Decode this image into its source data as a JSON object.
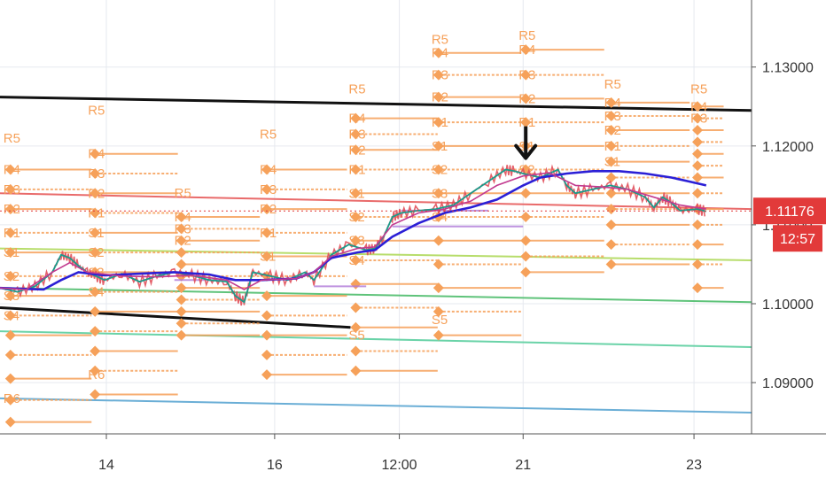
{
  "chart_data": {
    "type": "line",
    "title": "",
    "xlabel": "",
    "ylabel": "",
    "ylim": [
      1.0835,
      1.1385
    ],
    "x_ticks": [
      {
        "label": "14",
        "t": 12.2
      },
      {
        "label": "16",
        "t": 31.5
      },
      {
        "label": "12:00",
        "t": 45.8
      },
      {
        "label": "21",
        "t": 60.0
      },
      {
        "label": "23",
        "t": 79.6
      }
    ],
    "y_ticks": [
      "1.13000",
      "1.12000",
      "1.11000",
      "1.10000",
      "1.09000"
    ],
    "y_tick_values": [
      1.13,
      1.12,
      1.11,
      1.1,
      1.09
    ],
    "current_price": {
      "label": "1.11176",
      "value": 1.11176,
      "color": "#e23a3a"
    },
    "countdown": {
      "label": "12:57",
      "color": "#e23a3a"
    },
    "grid": true,
    "price_series": {
      "name": "",
      "color": "#1b9a8a",
      "points": [
        [
          0,
          1.102
        ],
        [
          2,
          1.1015
        ],
        [
          4,
          1.1022
        ],
        [
          6,
          1.104
        ],
        [
          7,
          1.1062
        ],
        [
          8,
          1.1058
        ],
        [
          9,
          1.1048
        ],
        [
          10,
          1.104
        ],
        [
          11,
          1.1035
        ],
        [
          12,
          1.103
        ],
        [
          14,
          1.1038
        ],
        [
          16,
          1.1028
        ],
        [
          18,
          1.1035
        ],
        [
          20,
          1.104
        ],
        [
          22,
          1.1036
        ],
        [
          24,
          1.103
        ],
        [
          26,
          1.1028
        ],
        [
          27,
          1.101
        ],
        [
          28,
          1.1002
        ],
        [
          29,
          1.104
        ],
        [
          31,
          1.1035
        ],
        [
          33,
          1.103
        ],
        [
          35,
          1.104
        ],
        [
          36,
          1.103
        ],
        [
          38,
          1.1062
        ],
        [
          40,
          1.1075
        ],
        [
          42,
          1.1068
        ],
        [
          43,
          1.107
        ],
        [
          44,
          1.1085
        ],
        [
          45,
          1.111
        ],
        [
          46,
          1.1115
        ],
        [
          48,
          1.1118
        ],
        [
          50,
          1.112
        ],
        [
          52,
          1.1125
        ],
        [
          54,
          1.114
        ],
        [
          56,
          1.1155
        ],
        [
          58,
          1.117
        ],
        [
          59,
          1.1168
        ],
        [
          60,
          1.1165
        ],
        [
          62,
          1.116
        ],
        [
          64,
          1.117
        ],
        [
          65,
          1.115
        ],
        [
          66,
          1.114
        ],
        [
          68,
          1.1145
        ],
        [
          70,
          1.115
        ],
        [
          72,
          1.1145
        ],
        [
          74,
          1.1135
        ],
        [
          75,
          1.1122
        ],
        [
          76,
          1.1135
        ],
        [
          77,
          1.1128
        ],
        [
          78,
          1.1118
        ],
        [
          80,
          1.112
        ],
        [
          81,
          1.1117
        ]
      ]
    },
    "moving_averages": [
      {
        "name": "",
        "color": "#2b1fd6",
        "points": [
          [
            0,
            1.102
          ],
          [
            5,
            1.1018
          ],
          [
            7,
            1.103
          ],
          [
            9,
            1.104
          ],
          [
            12,
            1.1036
          ],
          [
            16,
            1.1038
          ],
          [
            20,
            1.104
          ],
          [
            24,
            1.1037
          ],
          [
            27,
            1.103
          ],
          [
            30,
            1.103
          ],
          [
            34,
            1.1032
          ],
          [
            36,
            1.104
          ],
          [
            38,
            1.1058
          ],
          [
            41,
            1.1065
          ],
          [
            43,
            1.1068
          ],
          [
            45,
            1.1085
          ],
          [
            48,
            1.1102
          ],
          [
            51,
            1.1115
          ],
          [
            54,
            1.1122
          ],
          [
            57,
            1.1132
          ],
          [
            60,
            1.115
          ],
          [
            62,
            1.116
          ],
          [
            65,
            1.1165
          ],
          [
            68,
            1.1168
          ],
          [
            71,
            1.1168
          ],
          [
            74,
            1.1165
          ],
          [
            77,
            1.116
          ],
          [
            79,
            1.1155
          ],
          [
            81,
            1.115
          ]
        ]
      },
      {
        "name": "",
        "color": "#c23a8f",
        "points": [
          [
            0,
            1.102
          ],
          [
            3,
            1.1018
          ],
          [
            6,
            1.104
          ],
          [
            8,
            1.1052
          ],
          [
            10,
            1.104
          ],
          [
            14,
            1.1035
          ],
          [
            18,
            1.1034
          ],
          [
            22,
            1.1036
          ],
          [
            26,
            1.103
          ],
          [
            28,
            1.1018
          ],
          [
            30,
            1.103
          ],
          [
            34,
            1.1032
          ],
          [
            36,
            1.104
          ],
          [
            38,
            1.106
          ],
          [
            41,
            1.107
          ],
          [
            43,
            1.1072
          ],
          [
            45,
            1.11
          ],
          [
            48,
            1.1115
          ],
          [
            51,
            1.112
          ],
          [
            54,
            1.113
          ],
          [
            57,
            1.115
          ],
          [
            60,
            1.1162
          ],
          [
            63,
            1.1166
          ],
          [
            66,
            1.115
          ],
          [
            69,
            1.1148
          ],
          [
            72,
            1.1145
          ],
          [
            75,
            1.1135
          ],
          [
            78,
            1.1125
          ],
          [
            81,
            1.112
          ]
        ]
      }
    ],
    "trendlines": [
      {
        "color": "#111111",
        "points": [
          [
            0,
            1.1262
          ],
          [
            86.2,
            1.1245
          ]
        ]
      },
      {
        "color": "#111111",
        "points": [
          [
            0,
            1.0995
          ],
          [
            40.2,
            1.097
          ]
        ]
      },
      {
        "color": "#e96a6a",
        "points": [
          [
            0,
            1.114
          ],
          [
            86.2,
            1.112
          ]
        ]
      },
      {
        "color": "#b7dd6b",
        "points": [
          [
            0,
            1.107
          ],
          [
            86.2,
            1.1055
          ]
        ]
      },
      {
        "color": "#5fc37a",
        "points": [
          [
            0,
            1.102
          ],
          [
            86.2,
            1.1002
          ]
        ]
      },
      {
        "color": "#6ad3a8",
        "points": [
          [
            0,
            1.0965
          ],
          [
            86.2,
            1.0945
          ]
        ]
      },
      {
        "color": "#6aaed6",
        "points": [
          [
            0,
            1.088
          ],
          [
            86.2,
            1.0862
          ]
        ]
      }
    ],
    "pivot_blocks": [
      {
        "x": 1.2,
        "len": 9.3,
        "top_label": "R5",
        "top_value": 1.12,
        "bottom_label": "R6",
        "bottom_value": 1.088,
        "levels": [
          1.117,
          1.1145,
          1.112,
          1.109,
          1.1065,
          1.1035,
          1.101,
          1.0985,
          1.096,
          1.0935,
          1.0905,
          1.0878,
          1.085
        ],
        "labels": [
          "R4",
          "R3",
          "R2",
          "R1",
          "S1",
          "S2",
          "S3",
          "S4"
        ]
      },
      {
        "x": 10.9,
        "len": 9.5,
        "top_label": "R5",
        "top_value": 1.1235,
        "bottom_label": "R6",
        "bottom_value": 1.091,
        "levels": [
          1.119,
          1.1165,
          1.114,
          1.1115,
          1.109,
          1.1065,
          1.104,
          1.1015,
          1.099,
          1.0965,
          1.094,
          1.0915,
          1.0885
        ],
        "labels": [
          "R4",
          "R3",
          "R2",
          "R1",
          "S1",
          "S2",
          "S3",
          "S4"
        ]
      },
      {
        "x": 20.8,
        "len": 9.0,
        "top_label": "R5",
        "top_value": 1.113,
        "bottom_label": "",
        "bottom_value": 1.095,
        "levels": [
          1.111,
          1.1095,
          1.108,
          1.1065,
          1.105,
          1.1035,
          1.102,
          1.1005,
          1.099,
          1.0975,
          1.096
        ],
        "labels": [
          "R4",
          "R3",
          "R2"
        ]
      },
      {
        "x": 30.6,
        "len": 9.2,
        "top_label": "R5",
        "top_value": 1.1205,
        "bottom_label": "",
        "bottom_value": 1.091,
        "levels": [
          1.117,
          1.1145,
          1.112,
          1.109,
          1.106,
          1.1035,
          1.101,
          1.0985,
          1.096,
          1.0935,
          1.091
        ],
        "labels": [
          "R4",
          "R3",
          "R2",
          "R1",
          "S1"
        ]
      },
      {
        "x": 40.8,
        "len": 9.4,
        "top_label": "R5",
        "top_value": 1.1262,
        "bottom_label": "S5",
        "bottom_value": 1.096,
        "levels": [
          1.1235,
          1.1215,
          1.1195,
          1.117,
          1.114,
          1.111,
          1.108,
          1.1055,
          1.1025,
          1.0995,
          1.097,
          1.094,
          1.0915
        ],
        "labels": [
          "R4",
          "R3",
          "R2",
          "R1",
          "S1",
          "S2",
          "S3",
          "S4"
        ]
      },
      {
        "x": 50.3,
        "len": 9.5,
        "top_label": "R5",
        "top_value": 1.1325,
        "bottom_label": "S5",
        "bottom_value": 1.098,
        "levels": [
          1.1318,
          1.129,
          1.1262,
          1.123,
          1.12,
          1.117,
          1.114,
          1.111,
          1.108,
          1.105,
          1.102,
          1.099,
          1.096
        ],
        "labels": [
          "R4",
          "R3",
          "R2",
          "R1",
          "S1",
          "S2",
          "S3",
          "S4"
        ]
      },
      {
        "x": 60.3,
        "len": 9.0,
        "top_label": "R5",
        "top_value": 1.133,
        "bottom_label": "",
        "bottom_value": 1.104,
        "levels": [
          1.1322,
          1.129,
          1.126,
          1.123,
          1.12,
          1.117,
          1.114,
          1.111,
          1.108,
          1.106,
          1.104
        ],
        "labels": [
          "R4",
          "R3",
          "R2",
          "R1",
          "S1",
          "S2"
        ]
      },
      {
        "x": 70.1,
        "len": 9.0,
        "top_label": "R5",
        "top_value": 1.1268,
        "bottom_label": "",
        "bottom_value": 1.105,
        "levels": [
          1.1255,
          1.1238,
          1.122,
          1.12,
          1.118,
          1.116,
          1.114,
          1.112,
          1.11,
          1.1075,
          1.105
        ],
        "labels": [
          "R4",
          "R3",
          "R2",
          "R1",
          "S1"
        ]
      },
      {
        "x": 80.0,
        "len": 3.0,
        "top_label": "R5",
        "top_value": 1.1262,
        "bottom_label": "",
        "bottom_value": 1.102,
        "levels": [
          1.125,
          1.1235,
          1.122,
          1.1205,
          1.119,
          1.1175,
          1.116,
          1.114,
          1.112,
          1.11,
          1.1075,
          1.105,
          1.102
        ],
        "labels": [
          "R4",
          "R3"
        ]
      }
    ],
    "annotations": [
      {
        "type": "arrow-down",
        "t": 60.3,
        "value": 1.118,
        "color": "#111111"
      }
    ],
    "purple_levels": [
      {
        "start": 46.0,
        "end": 56.0,
        "value": 1.1118
      },
      {
        "start": 45.0,
        "end": 60.0,
        "value": 1.1098
      },
      {
        "start": 36.0,
        "end": 42.0,
        "value": 1.1022
      },
      {
        "start": 20.0,
        "end": 27.0,
        "value": 1.103
      }
    ]
  }
}
